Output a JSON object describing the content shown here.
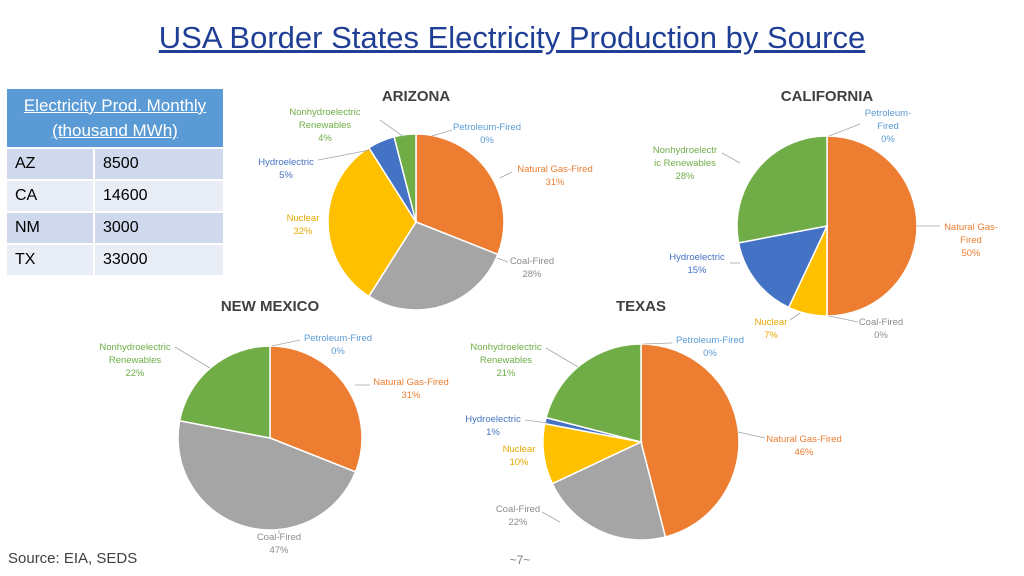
{
  "title": "USA Border States Electricity Production by Source",
  "table": {
    "header": "Electricity Prod. Monthly (thousand MWh)",
    "rows": [
      {
        "state": "AZ",
        "value": "8500"
      },
      {
        "state": "CA",
        "value": "14600"
      },
      {
        "state": "NM",
        "value": "3000"
      },
      {
        "state": "TX",
        "value": "33000"
      }
    ]
  },
  "source": "Source: EIA, SEDS",
  "page_number": "~7~",
  "colors": {
    "natural_gas": "#ed7d31",
    "coal": "#a5a5a5",
    "nuclear": "#ffc000",
    "hydro": "#4472c4",
    "renewables": "#70ad47",
    "petroleum": "#5b9bd5",
    "title": "#1f3e95"
  },
  "chart_data": [
    {
      "type": "pie",
      "title": "ARIZONA",
      "categories": [
        "Petroleum-Fired",
        "Natural Gas-Fired",
        "Coal-Fired",
        "Nuclear",
        "Hydroelectric",
        "Nonhydroelectric Renewables"
      ],
      "values": [
        0,
        31,
        28,
        32,
        5,
        4
      ],
      "labels": [
        {
          "name": "Petroleum-Fired",
          "pct": "0%"
        },
        {
          "name": "Natural Gas-Fired",
          "pct": "31%"
        },
        {
          "name": "Coal-Fired",
          "pct": "28%"
        },
        {
          "name": "Nuclear",
          "pct": "32%"
        },
        {
          "name": "Hydroelectric",
          "pct": "5%"
        },
        {
          "name": "Nonhydroelectric Renewables",
          "pct": "4%"
        }
      ]
    },
    {
      "type": "pie",
      "title": "CALIFORNIA",
      "categories": [
        "Petroleum-Fired",
        "Natural Gas-Fired",
        "Coal-Fired",
        "Nuclear",
        "Hydroelectric",
        "Nonhydroelectric Renewables"
      ],
      "values": [
        0,
        50,
        0,
        7,
        15,
        28
      ],
      "labels": [
        {
          "name": "Petroleum-Fired",
          "pct": "0%"
        },
        {
          "name": "Natural Gas-Fired",
          "pct": "50%"
        },
        {
          "name": "Coal-Fired",
          "pct": "0%"
        },
        {
          "name": "Nuclear",
          "pct": "7%"
        },
        {
          "name": "Hydroelectric",
          "pct": "15%"
        },
        {
          "name": "Nonhydroelectric Renewables",
          "pct": "28%"
        }
      ]
    },
    {
      "type": "pie",
      "title": "NEW MEXICO",
      "categories": [
        "Petroleum-Fired",
        "Natural Gas-Fired",
        "Coal-Fired",
        "Nonhydroelectric Renewables"
      ],
      "values": [
        0,
        31,
        47,
        22
      ],
      "labels": [
        {
          "name": "Petroleum-Fired",
          "pct": "0%"
        },
        {
          "name": "Natural Gas-Fired",
          "pct": "31%"
        },
        {
          "name": "Coal-Fired",
          "pct": "47%"
        },
        {
          "name": "Nonhydroelectric Renewables",
          "pct": "22%"
        }
      ]
    },
    {
      "type": "pie",
      "title": "TEXAS",
      "categories": [
        "Petroleum-Fired",
        "Natural Gas-Fired",
        "Coal-Fired",
        "Nuclear",
        "Hydroelectric",
        "Nonhydroelectric Renewables"
      ],
      "values": [
        0,
        46,
        22,
        10,
        1,
        21
      ],
      "labels": [
        {
          "name": "Petroleum-Fired",
          "pct": "0%"
        },
        {
          "name": "Natural Gas-Fired",
          "pct": "46%"
        },
        {
          "name": "Coal-Fired",
          "pct": "22%"
        },
        {
          "name": "Nuclear",
          "pct": "10%"
        },
        {
          "name": "Hydroelectric",
          "pct": "1%"
        },
        {
          "name": "Nonhydroelectric Renewables",
          "pct": "21%"
        }
      ]
    }
  ]
}
